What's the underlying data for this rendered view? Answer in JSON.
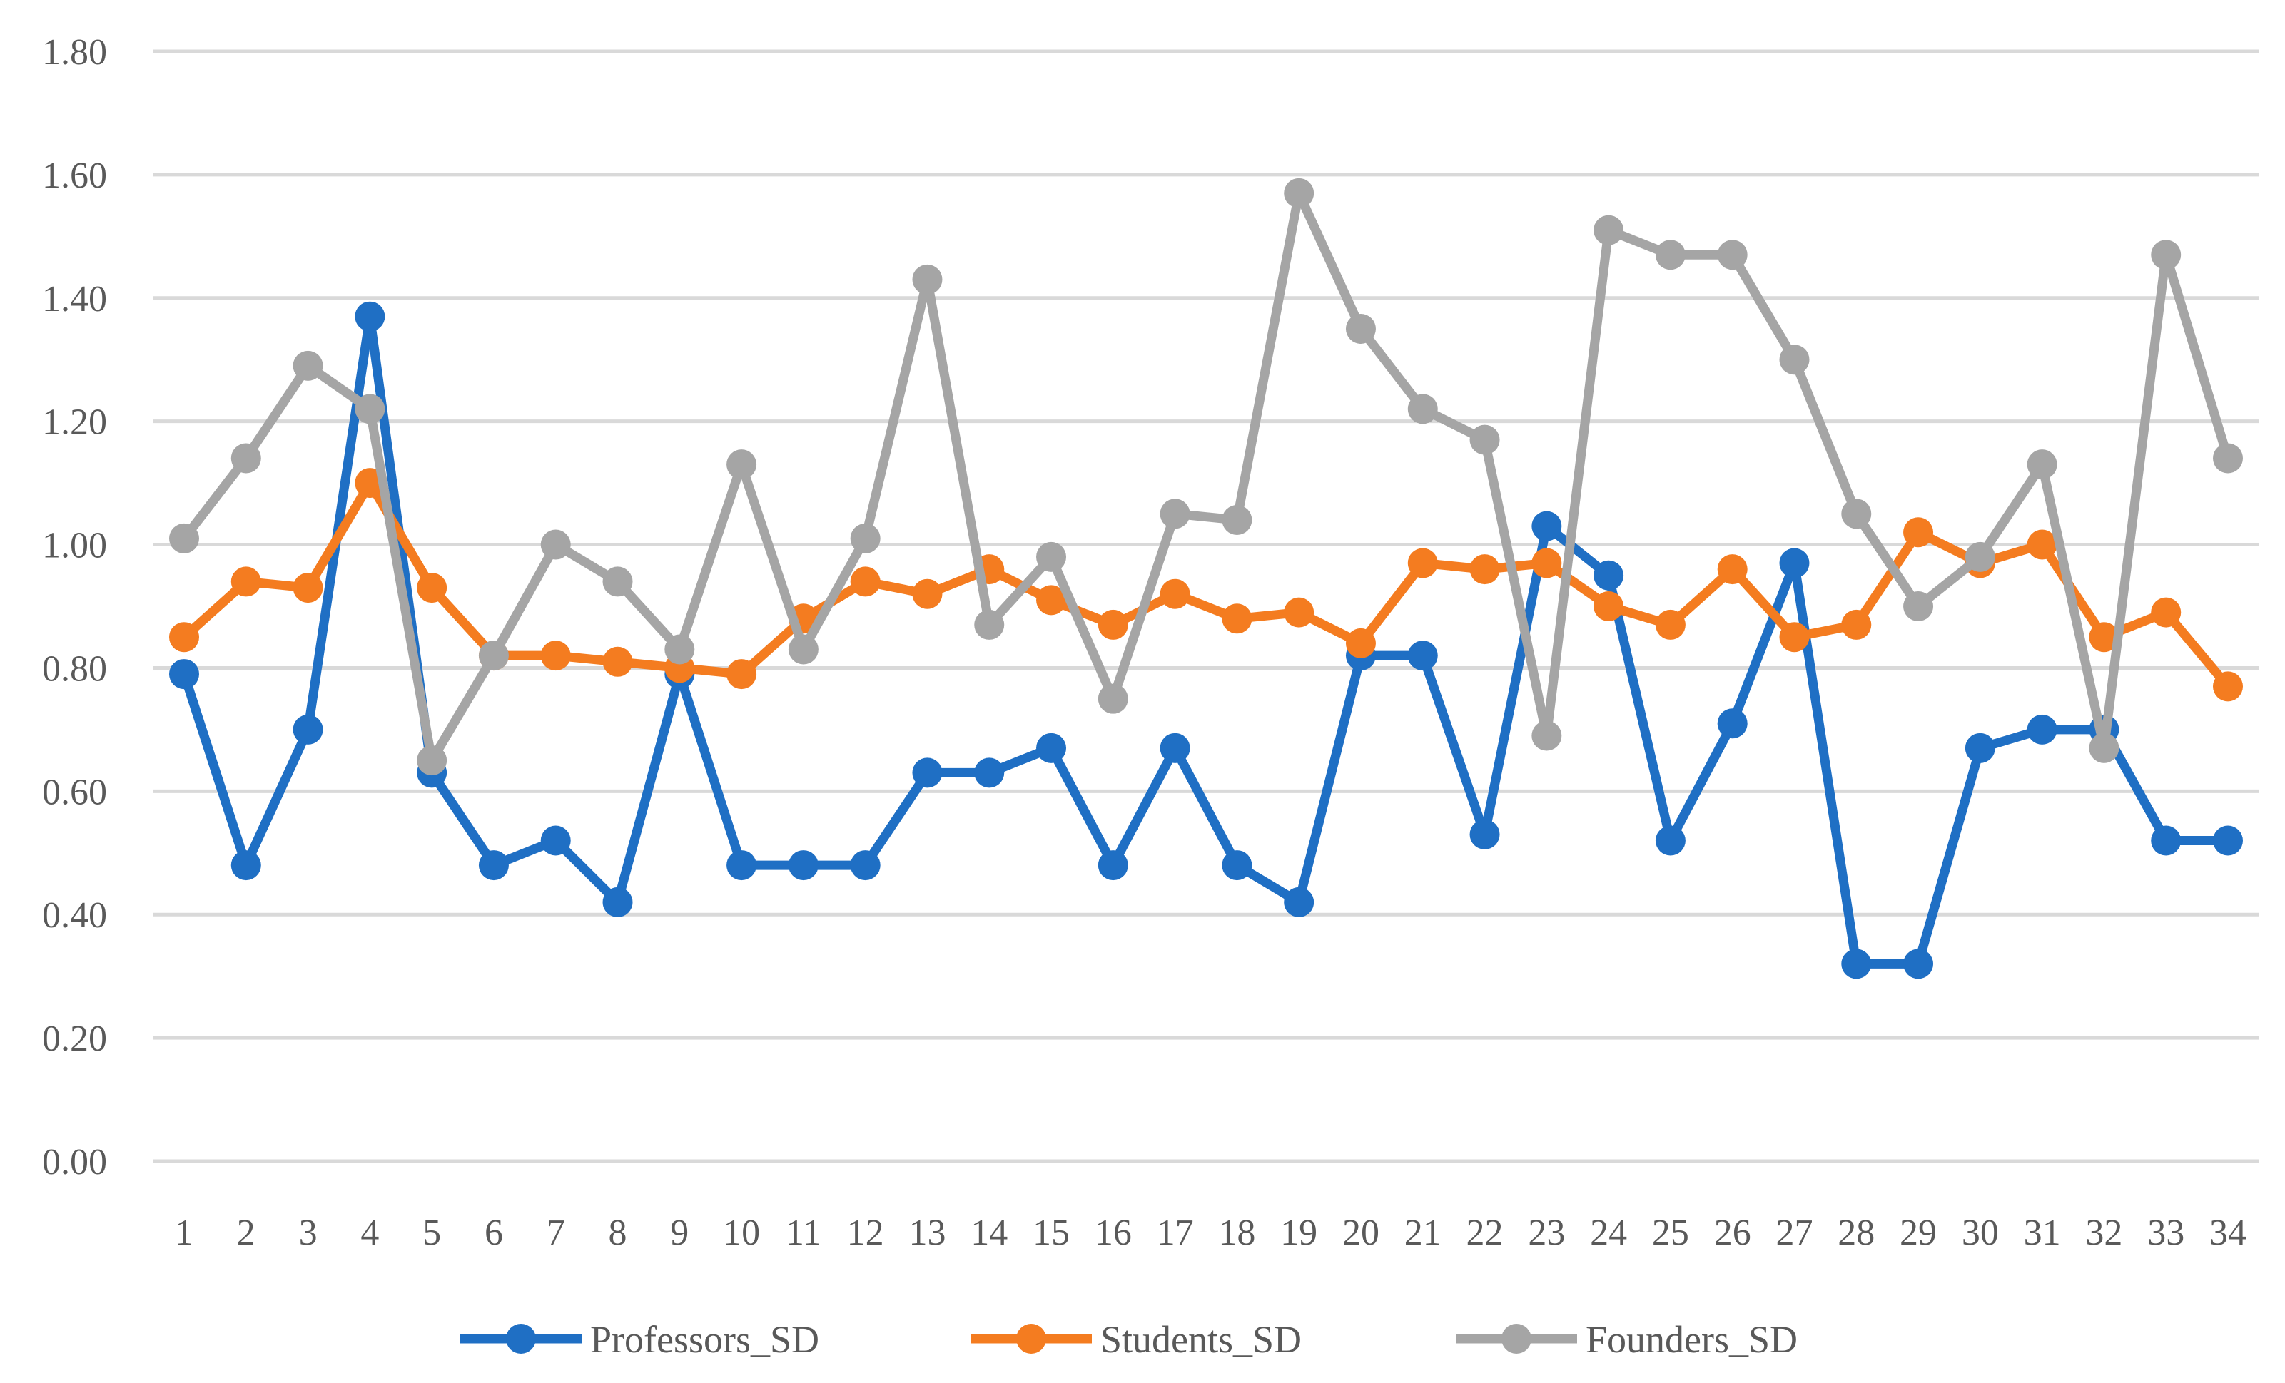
{
  "chart_data": {
    "type": "line",
    "title": "",
    "xlabel": "",
    "ylabel": "",
    "ylim": [
      0,
      1.8
    ],
    "ytick_step": 0.2,
    "grid": true,
    "legend_position": "bottom",
    "x": [
      1,
      2,
      3,
      4,
      5,
      6,
      7,
      8,
      9,
      10,
      11,
      12,
      13,
      14,
      15,
      16,
      17,
      18,
      19,
      20,
      21,
      22,
      23,
      24,
      25,
      26,
      27,
      28,
      29,
      30,
      31,
      32,
      33,
      34
    ],
    "series": [
      {
        "name": "Professors_SD",
        "color": "#1f6fc4",
        "values": [
          0.79,
          0.48,
          0.7,
          1.37,
          0.63,
          0.48,
          0.52,
          0.42,
          0.79,
          0.48,
          0.48,
          0.48,
          0.63,
          0.63,
          0.67,
          0.48,
          0.67,
          0.48,
          0.42,
          0.82,
          0.82,
          0.53,
          1.03,
          0.95,
          0.52,
          0.71,
          0.97,
          0.32,
          0.32,
          0.67,
          0.7,
          0.7,
          0.52,
          0.52
        ]
      },
      {
        "name": "Students_SD",
        "color": "#f47c20",
        "values": [
          0.85,
          0.94,
          0.93,
          1.1,
          0.93,
          0.82,
          0.82,
          0.81,
          0.8,
          0.79,
          0.88,
          0.94,
          0.92,
          0.96,
          0.91,
          0.87,
          0.92,
          0.88,
          0.89,
          0.84,
          0.97,
          0.96,
          0.97,
          0.9,
          0.87,
          0.96,
          0.85,
          0.87,
          1.02,
          0.97,
          1.0,
          0.85,
          0.89,
          0.77
        ]
      },
      {
        "name": "Founders_SD",
        "color": "#a5a5a5",
        "values": [
          1.01,
          1.14,
          1.29,
          1.22,
          0.65,
          0.82,
          1.0,
          0.94,
          0.83,
          1.13,
          0.83,
          1.01,
          1.43,
          0.87,
          0.98,
          0.75,
          1.05,
          1.04,
          1.57,
          1.35,
          1.22,
          1.17,
          0.69,
          1.51,
          1.47,
          1.47,
          1.3,
          1.05,
          0.9,
          0.98,
          1.13,
          0.67,
          1.47,
          1.14
        ]
      }
    ]
  }
}
